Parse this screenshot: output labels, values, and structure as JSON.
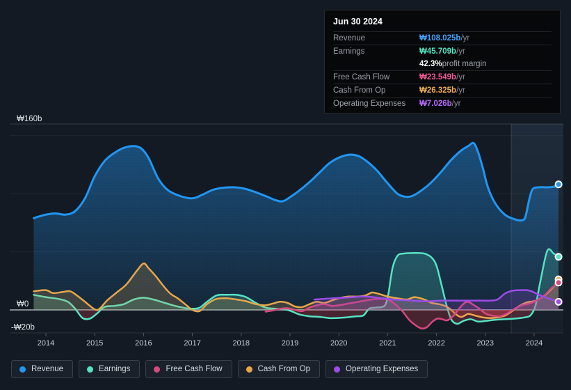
{
  "tooltip": {
    "date": "Jun 30 2024",
    "rows": [
      {
        "label": "Revenue",
        "value": "₩108.025b",
        "suffix": " /yr",
        "series": "revenue"
      },
      {
        "label": "Earnings",
        "value": "₩45.709b",
        "suffix": " /yr",
        "series": "earnings",
        "extra_value": "42.3%",
        "extra_label": " profit margin"
      },
      {
        "label": "Free Cash Flow",
        "value": "₩23.549b",
        "suffix": " /yr",
        "series": "fcf"
      },
      {
        "label": "Cash From Op",
        "value": "₩26.325b",
        "suffix": " /yr",
        "series": "cashop"
      },
      {
        "label": "Operating Expenses",
        "value": "₩7.026b",
        "suffix": " /yr",
        "series": "opex"
      }
    ]
  },
  "legend": [
    {
      "label": "Revenue",
      "series": "revenue"
    },
    {
      "label": "Earnings",
      "series": "earnings"
    },
    {
      "label": "Free Cash Flow",
      "series": "fcf"
    },
    {
      "label": "Cash From Op",
      "series": "cashop"
    },
    {
      "label": "Operating Expenses",
      "series": "opex"
    }
  ],
  "chart_data": {
    "type": "area",
    "title": "",
    "x_domain": [
      2013.75,
      2024.5
    ],
    "y_domain": [
      -20,
      160
    ],
    "y_ticks": [
      {
        "label": "₩160b",
        "value": 160
      },
      {
        "label": "₩0",
        "value": 0
      },
      {
        "label": "-₩20b",
        "value": -20
      }
    ],
    "x_ticks": [
      2014,
      2015,
      2016,
      2017,
      2018,
      2019,
      2020,
      2021,
      2022,
      2023,
      2024
    ],
    "gridline_values": [
      150,
      100,
      50
    ],
    "highlight_band": {
      "from": 2023.53,
      "to": 2024.6
    },
    "negative_fill_color": "#c23b4e",
    "series": [
      {
        "id": "revenue",
        "name": "Revenue",
        "color": "#2196f3",
        "text_color": "#45a4ff",
        "width": 3,
        "points": [
          [
            2013.75,
            79
          ],
          [
            2014,
            82
          ],
          [
            2014.2,
            83
          ],
          [
            2014.4,
            82
          ],
          [
            2014.6,
            85
          ],
          [
            2014.8,
            96
          ],
          [
            2015,
            115
          ],
          [
            2015.2,
            128
          ],
          [
            2015.4,
            135
          ],
          [
            2015.6,
            139.5
          ],
          [
            2015.8,
            141
          ],
          [
            2015.95,
            139
          ],
          [
            2016.1,
            131
          ],
          [
            2016.3,
            113
          ],
          [
            2016.5,
            103
          ],
          [
            2016.75,
            98
          ],
          [
            2017,
            96
          ],
          [
            2017.2,
            99
          ],
          [
            2017.4,
            103
          ],
          [
            2017.6,
            105
          ],
          [
            2017.85,
            105.5
          ],
          [
            2018.05,
            104.5
          ],
          [
            2018.25,
            102
          ],
          [
            2018.5,
            98
          ],
          [
            2018.7,
            94.5
          ],
          [
            2018.85,
            93.5
          ],
          [
            2019,
            97
          ],
          [
            2019.2,
            103
          ],
          [
            2019.4,
            110
          ],
          [
            2019.6,
            118
          ],
          [
            2019.8,
            126
          ],
          [
            2020,
            131
          ],
          [
            2020.2,
            133.5
          ],
          [
            2020.4,
            132.5
          ],
          [
            2020.6,
            127
          ],
          [
            2020.8,
            119
          ],
          [
            2021,
            109
          ],
          [
            2021.2,
            100
          ],
          [
            2021.35,
            97.5
          ],
          [
            2021.5,
            98
          ],
          [
            2021.7,
            103
          ],
          [
            2021.9,
            110
          ],
          [
            2022.1,
            119
          ],
          [
            2022.3,
            129
          ],
          [
            2022.5,
            137
          ],
          [
            2022.65,
            141
          ],
          [
            2022.76,
            143.5
          ],
          [
            2022.85,
            136
          ],
          [
            2022.95,
            122
          ],
          [
            2023.05,
            106
          ],
          [
            2023.2,
            92
          ],
          [
            2023.4,
            82
          ],
          [
            2023.6,
            78
          ],
          [
            2023.74,
            77
          ],
          [
            2023.82,
            80
          ],
          [
            2023.9,
            95
          ],
          [
            2023.97,
            104
          ],
          [
            2024.1,
            105.5
          ],
          [
            2024.3,
            105.5
          ],
          [
            2024.45,
            106.5
          ],
          [
            2024.5,
            108
          ]
        ]
      },
      {
        "id": "earnings",
        "name": "Earnings",
        "color": "#56e2c3",
        "text_color": "#52e5c4",
        "width": 2.5,
        "points": [
          [
            2013.75,
            13
          ],
          [
            2014,
            11
          ],
          [
            2014.25,
            9.5
          ],
          [
            2014.45,
            7
          ],
          [
            2014.6,
            1
          ],
          [
            2014.75,
            -7
          ],
          [
            2014.9,
            -7.5
          ],
          [
            2015.05,
            -3
          ],
          [
            2015.2,
            2.5
          ],
          [
            2015.4,
            3.5
          ],
          [
            2015.6,
            5
          ],
          [
            2015.8,
            9
          ],
          [
            2016,
            10.5
          ],
          [
            2016.2,
            9
          ],
          [
            2016.4,
            6.5
          ],
          [
            2016.6,
            4
          ],
          [
            2016.8,
            2
          ],
          [
            2017,
            1
          ],
          [
            2017.15,
            2
          ],
          [
            2017.3,
            7
          ],
          [
            2017.5,
            12.5
          ],
          [
            2017.7,
            13
          ],
          [
            2017.9,
            13
          ],
          [
            2018.1,
            11
          ],
          [
            2018.3,
            6
          ],
          [
            2018.5,
            2
          ],
          [
            2018.7,
            1
          ],
          [
            2018.9,
            0.5
          ],
          [
            2019.05,
            -1.5
          ],
          [
            2019.2,
            -4
          ],
          [
            2019.4,
            -5.5
          ],
          [
            2019.6,
            -6
          ],
          [
            2019.8,
            -7
          ],
          [
            2019.95,
            -7
          ],
          [
            2020.15,
            -6.5
          ],
          [
            2020.35,
            -5.5
          ],
          [
            2020.5,
            -4.8
          ],
          [
            2020.62,
            1
          ],
          [
            2020.75,
            2
          ],
          [
            2020.88,
            2.5
          ],
          [
            2020.96,
            5
          ],
          [
            2021.02,
            15
          ],
          [
            2021.1,
            36
          ],
          [
            2021.2,
            46.5
          ],
          [
            2021.32,
            48.5
          ],
          [
            2021.55,
            49
          ],
          [
            2021.75,
            48.5
          ],
          [
            2021.9,
            45
          ],
          [
            2022,
            38
          ],
          [
            2022.1,
            22
          ],
          [
            2022.2,
            5
          ],
          [
            2022.3,
            -8
          ],
          [
            2022.42,
            -12
          ],
          [
            2022.55,
            -9.5
          ],
          [
            2022.7,
            -8
          ],
          [
            2022.85,
            -10
          ],
          [
            2023,
            -9.5
          ],
          [
            2023.2,
            -8.5
          ],
          [
            2023.4,
            -8
          ],
          [
            2023.6,
            -7.5
          ],
          [
            2023.8,
            -6.5
          ],
          [
            2023.93,
            -4.5
          ],
          [
            2024.03,
            4
          ],
          [
            2024.13,
            25
          ],
          [
            2024.27,
            51
          ],
          [
            2024.4,
            48.5
          ],
          [
            2024.5,
            45.7
          ]
        ]
      },
      {
        "id": "cashop",
        "name": "Cash From Op",
        "color": "#e8a64b",
        "text_color": "#f0ad52",
        "width": 2.5,
        "points": [
          [
            2013.75,
            16
          ],
          [
            2014,
            17
          ],
          [
            2014.15,
            14.5
          ],
          [
            2014.35,
            15.5
          ],
          [
            2014.5,
            16
          ],
          [
            2014.65,
            12
          ],
          [
            2014.8,
            7
          ],
          [
            2015,
            0.5
          ],
          [
            2015.1,
            1
          ],
          [
            2015.25,
            8
          ],
          [
            2015.45,
            15
          ],
          [
            2015.65,
            22
          ],
          [
            2015.85,
            33
          ],
          [
            2016,
            40
          ],
          [
            2016.1,
            36
          ],
          [
            2016.25,
            29
          ],
          [
            2016.4,
            21
          ],
          [
            2016.55,
            14
          ],
          [
            2016.7,
            10
          ],
          [
            2016.85,
            5
          ],
          [
            2017,
            0
          ],
          [
            2017.15,
            -1
          ],
          [
            2017.3,
            5
          ],
          [
            2017.5,
            9.5
          ],
          [
            2017.7,
            10
          ],
          [
            2017.9,
            9
          ],
          [
            2018.1,
            7.5
          ],
          [
            2018.3,
            5
          ],
          [
            2018.5,
            4
          ],
          [
            2018.65,
            5.5
          ],
          [
            2018.8,
            7
          ],
          [
            2018.95,
            6
          ],
          [
            2019.1,
            3
          ],
          [
            2019.25,
            2.5
          ],
          [
            2019.4,
            5
          ],
          [
            2019.55,
            7
          ],
          [
            2019.7,
            6
          ],
          [
            2019.85,
            8
          ],
          [
            2020,
            10
          ],
          [
            2020.2,
            11.5
          ],
          [
            2020.4,
            11.5
          ],
          [
            2020.55,
            12.5
          ],
          [
            2020.68,
            15
          ],
          [
            2020.8,
            14
          ],
          [
            2021,
            11.5
          ],
          [
            2021.2,
            10
          ],
          [
            2021.4,
            9
          ],
          [
            2021.55,
            11
          ],
          [
            2021.75,
            9
          ],
          [
            2021.9,
            6
          ],
          [
            2022.05,
            5
          ],
          [
            2022.2,
            3
          ],
          [
            2022.3,
            0
          ],
          [
            2022.42,
            -4.5
          ],
          [
            2022.52,
            -6
          ],
          [
            2022.65,
            -3.5
          ],
          [
            2022.8,
            -5
          ],
          [
            2022.95,
            -6.5
          ],
          [
            2023.1,
            -7
          ],
          [
            2023.25,
            -6.5
          ],
          [
            2023.4,
            -5
          ],
          [
            2023.55,
            -1
          ],
          [
            2023.7,
            3.5
          ],
          [
            2023.85,
            6.5
          ],
          [
            2024,
            7.5
          ],
          [
            2024.15,
            10.5
          ],
          [
            2024.3,
            15.5
          ],
          [
            2024.42,
            21
          ],
          [
            2024.5,
            26.3
          ]
        ]
      },
      {
        "id": "fcf",
        "name": "Free Cash Flow",
        "color": "#d6497f",
        "text_color": "#ef5a95",
        "width": 2.5,
        "points": [
          [
            2018.5,
            -1.5
          ],
          [
            2018.65,
            -0.5
          ],
          [
            2018.8,
            1
          ],
          [
            2018.95,
            1.5
          ],
          [
            2019.1,
            0
          ],
          [
            2019.25,
            -1
          ],
          [
            2019.4,
            2
          ],
          [
            2019.55,
            4
          ],
          [
            2019.7,
            5
          ],
          [
            2019.85,
            3.5
          ],
          [
            2020,
            4
          ],
          [
            2020.2,
            5.5
          ],
          [
            2020.4,
            7
          ],
          [
            2020.6,
            8.5
          ],
          [
            2020.8,
            9.5
          ],
          [
            2021,
            9
          ],
          [
            2021.15,
            5
          ],
          [
            2021.3,
            -1
          ],
          [
            2021.45,
            -9
          ],
          [
            2021.6,
            -14
          ],
          [
            2021.7,
            -16
          ],
          [
            2021.8,
            -15
          ],
          [
            2021.92,
            -10
          ],
          [
            2022.02,
            -7.5
          ],
          [
            2022.12,
            -8
          ],
          [
            2022.22,
            -9
          ],
          [
            2022.35,
            -5
          ],
          [
            2022.5,
            3
          ],
          [
            2022.63,
            7
          ],
          [
            2022.77,
            4
          ],
          [
            2022.88,
            1
          ],
          [
            2023,
            -3
          ],
          [
            2023.15,
            -5
          ],
          [
            2023.3,
            -5.5
          ],
          [
            2023.45,
            -3
          ],
          [
            2023.6,
            1
          ],
          [
            2023.75,
            4
          ],
          [
            2023.9,
            5.5
          ],
          [
            2024.05,
            8
          ],
          [
            2024.2,
            12
          ],
          [
            2024.35,
            18.5
          ],
          [
            2024.5,
            23.5
          ]
        ]
      },
      {
        "id": "opex",
        "name": "Operating Expenses",
        "color": "#9d4ce8",
        "text_color": "#b56bff",
        "width": 2.5,
        "points": [
          [
            2019.5,
            9
          ],
          [
            2019.7,
            9.5
          ],
          [
            2019.9,
            10
          ],
          [
            2020.1,
            10.5
          ],
          [
            2020.3,
            11
          ],
          [
            2020.5,
            11.5
          ],
          [
            2020.7,
            11
          ],
          [
            2020.9,
            10
          ],
          [
            2021.1,
            9
          ],
          [
            2021.3,
            8.5
          ],
          [
            2021.5,
            8
          ],
          [
            2021.7,
            7.5
          ],
          [
            2021.9,
            7.5
          ],
          [
            2022.1,
            8
          ],
          [
            2022.3,
            8
          ],
          [
            2022.5,
            8
          ],
          [
            2022.7,
            8
          ],
          [
            2022.9,
            8
          ],
          [
            2023.1,
            8
          ],
          [
            2023.25,
            9
          ],
          [
            2023.4,
            14
          ],
          [
            2023.55,
            16.5
          ],
          [
            2023.7,
            17
          ],
          [
            2023.85,
            17
          ],
          [
            2023.95,
            16
          ],
          [
            2024.1,
            13
          ],
          [
            2024.25,
            10.5
          ],
          [
            2024.4,
            8.5
          ],
          [
            2024.5,
            7
          ]
        ]
      }
    ]
  }
}
